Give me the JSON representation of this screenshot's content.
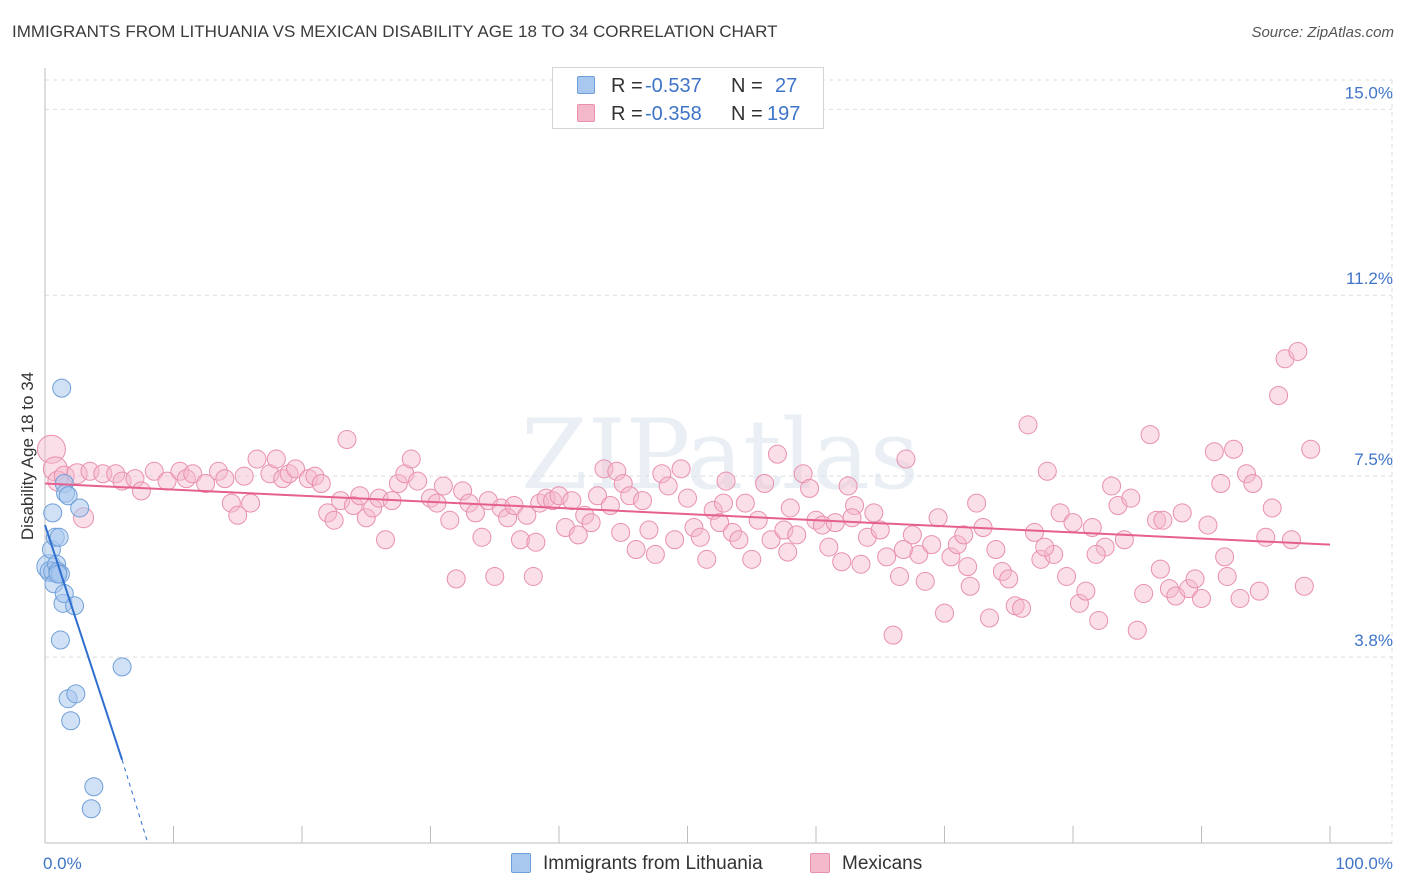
{
  "title": "IMMIGRANTS FROM LITHUANIA VS MEXICAN DISABILITY AGE 18 TO 34 CORRELATION CHART",
  "source": "Source: ZipAtlas.com",
  "watermark": "ZIPatlas",
  "colors": {
    "blue_fill": "#a9c8ef",
    "blue_stroke": "#6f9fd8",
    "blue_line": "#2f6fd0",
    "pink_fill": "#f4b8cb",
    "pink_stroke": "#e990ad",
    "pink_line": "#e5608e",
    "tick_label": "#3f74c8",
    "grid": "#dedede"
  },
  "stats_legend": {
    "rows": [
      {
        "r_label": "R =",
        "r_value": "-0.537",
        "n_label": "N =",
        "n_value": "27"
      },
      {
        "r_label": "R =",
        "r_value": "-0.358",
        "n_label": "N =",
        "n_value": "197"
      }
    ]
  },
  "bottom_legend": {
    "items": [
      {
        "label": "Immigrants from Lithuania"
      },
      {
        "label": "Mexicans"
      }
    ]
  },
  "chart_data": {
    "type": "scatter",
    "title": "IMMIGRANTS FROM LITHUANIA VS MEXICAN DISABILITY AGE 18 TO 34 CORRELATION CHART",
    "xlabel": "",
    "ylabel": "Disability Age 18 to 34",
    "xlim": [
      0,
      100
    ],
    "ylim": [
      0,
      15.6
    ],
    "x_tick_labels": [
      "0.0%",
      "100.0%"
    ],
    "y_ticks": [
      3.8,
      7.5,
      11.2,
      15.0
    ],
    "y_tick_labels": [
      "3.8%",
      "7.5%",
      "11.2%",
      "15.0%"
    ],
    "grid": true,
    "series": [
      {
        "name": "Immigrants from Lithuania",
        "r": -0.537,
        "n": 27,
        "trend": {
          "x0": 0,
          "y0": 6.5,
          "x1": 6,
          "y1": 1.7,
          "dash_to_x": 8,
          "dash_to_y": 0.0
        },
        "points": [
          [
            0.3,
            5.65,
            12
          ],
          [
            0.4,
            5.55,
            10
          ],
          [
            0.5,
            6.0,
            9
          ],
          [
            0.6,
            6.75,
            9
          ],
          [
            0.6,
            5.55,
            9
          ],
          [
            0.7,
            5.3,
            9
          ],
          [
            0.8,
            6.25,
            9
          ],
          [
            0.9,
            5.7,
            9
          ],
          [
            1.0,
            5.55,
            9
          ],
          [
            1.1,
            6.25,
            9
          ],
          [
            1.2,
            4.15,
            9
          ],
          [
            1.2,
            5.5,
            9
          ],
          [
            1.4,
            4.9,
            9
          ],
          [
            1.5,
            5.1,
            9
          ],
          [
            1.3,
            9.3,
            9
          ],
          [
            1.5,
            7.35,
            9
          ],
          [
            1.6,
            7.15,
            9
          ],
          [
            1.8,
            7.1,
            9
          ],
          [
            1.8,
            2.95,
            9
          ],
          [
            2.0,
            2.5,
            9
          ],
          [
            2.3,
            4.85,
            9
          ],
          [
            2.4,
            3.05,
            9
          ],
          [
            2.7,
            6.85,
            9
          ],
          [
            3.8,
            1.15,
            9
          ],
          [
            3.6,
            0.7,
            9
          ],
          [
            6.0,
            3.6,
            9
          ],
          [
            1.0,
            5.5,
            9
          ]
        ]
      },
      {
        "name": "Mexicans",
        "r": -0.358,
        "n": 197,
        "trend": {
          "x0": 0,
          "y0": 7.35,
          "x1": 100,
          "y1": 6.1
        },
        "points": [
          [
            0.5,
            8.05,
            14
          ],
          [
            0.8,
            7.65,
            12
          ],
          [
            1.0,
            7.4,
            10
          ],
          [
            1.5,
            7.5,
            10
          ],
          [
            2.5,
            7.55,
            10
          ],
          [
            3.0,
            6.65,
            10
          ],
          [
            3.5,
            7.6,
            9
          ],
          [
            4.5,
            7.55,
            9
          ],
          [
            5.5,
            7.55,
            9
          ],
          [
            6.0,
            7.4,
            9
          ],
          [
            7.0,
            7.45,
            9
          ],
          [
            7.5,
            7.2,
            9
          ],
          [
            8.5,
            7.6,
            9
          ],
          [
            9.5,
            7.4,
            9
          ],
          [
            10.5,
            7.6,
            9
          ],
          [
            11.0,
            7.45,
            9
          ],
          [
            11.5,
            7.55,
            9
          ],
          [
            12.5,
            7.35,
            9
          ],
          [
            13.5,
            7.6,
            9
          ],
          [
            14.0,
            7.45,
            9
          ],
          [
            14.5,
            6.95,
            9
          ],
          [
            15.0,
            6.7,
            9
          ],
          [
            15.5,
            7.5,
            9
          ],
          [
            16.0,
            6.95,
            9
          ],
          [
            16.5,
            7.85,
            9
          ],
          [
            17.5,
            7.55,
            9
          ],
          [
            18.0,
            7.85,
            9
          ],
          [
            18.5,
            7.45,
            9
          ],
          [
            19.0,
            7.55,
            9
          ],
          [
            19.5,
            7.65,
            9
          ],
          [
            20.5,
            7.45,
            9
          ],
          [
            21.0,
            7.5,
            9
          ],
          [
            21.5,
            7.35,
            9
          ],
          [
            22.0,
            6.75,
            9
          ],
          [
            22.5,
            6.6,
            9
          ],
          [
            23.0,
            7.0,
            9
          ],
          [
            23.5,
            8.25,
            9
          ],
          [
            24.0,
            6.9,
            9
          ],
          [
            24.5,
            7.1,
            9
          ],
          [
            25.0,
            6.65,
            9
          ],
          [
            25.5,
            6.85,
            9
          ],
          [
            26.0,
            7.05,
            9
          ],
          [
            26.5,
            6.2,
            9
          ],
          [
            27.0,
            7.0,
            9
          ],
          [
            27.5,
            7.35,
            9
          ],
          [
            28.0,
            7.55,
            9
          ],
          [
            28.5,
            7.85,
            9
          ],
          [
            29.0,
            7.4,
            9
          ],
          [
            30.0,
            7.05,
            9
          ],
          [
            30.5,
            6.95,
            9
          ],
          [
            31.0,
            7.3,
            9
          ],
          [
            31.5,
            6.6,
            9
          ],
          [
            32.0,
            5.4,
            9
          ],
          [
            32.5,
            7.2,
            9
          ],
          [
            33.0,
            6.95,
            9
          ],
          [
            33.5,
            6.75,
            9
          ],
          [
            34.0,
            6.25,
            9
          ],
          [
            34.5,
            7.0,
            9
          ],
          [
            35.0,
            5.45,
            9
          ],
          [
            35.5,
            6.85,
            9
          ],
          [
            36.0,
            6.65,
            9
          ],
          [
            36.5,
            6.9,
            9
          ],
          [
            37.0,
            6.2,
            9
          ],
          [
            37.5,
            6.7,
            9
          ],
          [
            38.0,
            5.45,
            9
          ],
          [
            38.5,
            6.95,
            9
          ],
          [
            39.0,
            7.05,
            9
          ],
          [
            39.5,
            7.0,
            9
          ],
          [
            40.0,
            7.1,
            9
          ],
          [
            40.5,
            6.45,
            9
          ],
          [
            41.0,
            7.0,
            9
          ],
          [
            41.5,
            6.3,
            9
          ],
          [
            42.0,
            6.7,
            9
          ],
          [
            42.5,
            6.55,
            9
          ],
          [
            43.0,
            7.1,
            9
          ],
          [
            43.5,
            7.65,
            9
          ],
          [
            44.0,
            6.9,
            9
          ],
          [
            44.5,
            7.6,
            9
          ],
          [
            45.0,
            7.35,
            9
          ],
          [
            45.5,
            7.1,
            9
          ],
          [
            46.0,
            6.0,
            9
          ],
          [
            46.5,
            7.0,
            9
          ],
          [
            47.0,
            6.4,
            9
          ],
          [
            47.5,
            5.9,
            9
          ],
          [
            48.0,
            7.55,
            9
          ],
          [
            48.5,
            7.3,
            9
          ],
          [
            49.0,
            6.2,
            9
          ],
          [
            49.5,
            7.65,
            9
          ],
          [
            50.0,
            7.05,
            9
          ],
          [
            50.5,
            6.45,
            9
          ],
          [
            51.0,
            6.25,
            9
          ],
          [
            51.5,
            5.8,
            9
          ],
          [
            52.0,
            6.8,
            9
          ],
          [
            52.5,
            6.55,
            9
          ],
          [
            53.0,
            7.4,
            9
          ],
          [
            53.5,
            6.35,
            9
          ],
          [
            54.0,
            6.2,
            9
          ],
          [
            54.5,
            6.95,
            9
          ],
          [
            55.0,
            5.8,
            9
          ],
          [
            55.5,
            6.6,
            9
          ],
          [
            56.0,
            7.35,
            9
          ],
          [
            56.5,
            6.2,
            9
          ],
          [
            57.0,
            7.95,
            9
          ],
          [
            57.5,
            6.4,
            9
          ],
          [
            58.0,
            6.85,
            9
          ],
          [
            58.5,
            6.3,
            9
          ],
          [
            59.0,
            7.55,
            9
          ],
          [
            59.5,
            7.25,
            9
          ],
          [
            60.0,
            6.6,
            9
          ],
          [
            60.5,
            6.5,
            9
          ],
          [
            61.0,
            6.05,
            9
          ],
          [
            61.5,
            6.55,
            9
          ],
          [
            62.0,
            5.75,
            9
          ],
          [
            62.5,
            7.3,
            9
          ],
          [
            63.0,
            6.9,
            9
          ],
          [
            63.5,
            5.7,
            9
          ],
          [
            64.0,
            6.25,
            9
          ],
          [
            64.5,
            6.75,
            9
          ],
          [
            65.0,
            6.4,
            9
          ],
          [
            65.5,
            5.85,
            9
          ],
          [
            66.0,
            4.25,
            9
          ],
          [
            66.5,
            5.45,
            9
          ],
          [
            67.0,
            7.85,
            9
          ],
          [
            67.5,
            6.3,
            9
          ],
          [
            68.0,
            5.9,
            9
          ],
          [
            68.5,
            5.35,
            9
          ],
          [
            69.0,
            6.1,
            9
          ],
          [
            69.5,
            6.65,
            9
          ],
          [
            70.0,
            4.7,
            9
          ],
          [
            70.5,
            5.85,
            9
          ],
          [
            71.0,
            6.1,
            9
          ],
          [
            71.5,
            6.3,
            9
          ],
          [
            72.0,
            5.25,
            9
          ],
          [
            72.5,
            6.95,
            9
          ],
          [
            73.0,
            6.45,
            9
          ],
          [
            73.5,
            4.6,
            9
          ],
          [
            74.0,
            6.0,
            9
          ],
          [
            74.5,
            5.55,
            9
          ],
          [
            75.0,
            5.4,
            9
          ],
          [
            75.5,
            4.85,
            9
          ],
          [
            76.0,
            4.8,
            9
          ],
          [
            76.5,
            8.55,
            9
          ],
          [
            77.0,
            6.35,
            9
          ],
          [
            77.5,
            5.8,
            9
          ],
          [
            78.0,
            7.6,
            9
          ],
          [
            78.5,
            5.9,
            9
          ],
          [
            79.0,
            6.75,
            9
          ],
          [
            79.5,
            5.45,
            9
          ],
          [
            80.0,
            6.55,
            9
          ],
          [
            80.5,
            4.9,
            9
          ],
          [
            81.0,
            5.15,
            9
          ],
          [
            81.5,
            6.45,
            9
          ],
          [
            82.0,
            4.55,
            9
          ],
          [
            82.5,
            6.05,
            9
          ],
          [
            83.0,
            7.3,
            9
          ],
          [
            83.5,
            6.9,
            9
          ],
          [
            84.0,
            6.2,
            9
          ],
          [
            84.5,
            7.05,
            9
          ],
          [
            85.0,
            4.35,
            9
          ],
          [
            85.5,
            5.1,
            9
          ],
          [
            86.0,
            8.35,
            9
          ],
          [
            86.5,
            6.6,
            9
          ],
          [
            87.0,
            6.6,
            9
          ],
          [
            87.5,
            5.2,
            9
          ],
          [
            88.0,
            5.05,
            9
          ],
          [
            88.5,
            6.75,
            9
          ],
          [
            89.0,
            5.2,
            9
          ],
          [
            89.5,
            5.4,
            9
          ],
          [
            90.0,
            5.0,
            9
          ],
          [
            90.5,
            6.5,
            9
          ],
          [
            91.0,
            8.0,
            9
          ],
          [
            91.5,
            7.35,
            9
          ],
          [
            92.0,
            5.45,
            9
          ],
          [
            92.5,
            8.05,
            9
          ],
          [
            93.0,
            5.0,
            9
          ],
          [
            93.5,
            7.55,
            9
          ],
          [
            94.0,
            7.35,
            9
          ],
          [
            94.5,
            5.15,
            9
          ],
          [
            95.0,
            6.25,
            9
          ],
          [
            95.5,
            6.85,
            9
          ],
          [
            96.0,
            9.15,
            9
          ],
          [
            96.5,
            9.9,
            9
          ],
          [
            97.0,
            6.2,
            9
          ],
          [
            97.5,
            10.05,
            9
          ],
          [
            98.0,
            5.25,
            9
          ],
          [
            98.5,
            8.05,
            9
          ],
          [
            38.2,
            6.15,
            9
          ],
          [
            44.8,
            6.35,
            9
          ],
          [
            52.8,
            6.95,
            9
          ],
          [
            57.8,
            5.95,
            9
          ],
          [
            62.8,
            6.65,
            9
          ],
          [
            66.8,
            6.0,
            9
          ],
          [
            71.8,
            5.65,
            9
          ],
          [
            77.8,
            6.05,
            9
          ],
          [
            81.8,
            5.9,
            9
          ],
          [
            86.8,
            5.6,
            9
          ],
          [
            91.8,
            5.85,
            9
          ]
        ]
      }
    ]
  }
}
